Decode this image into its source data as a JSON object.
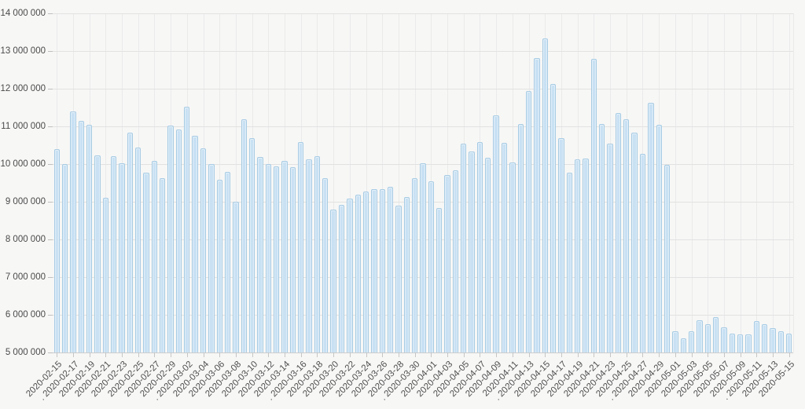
{
  "chart_data": {
    "type": "bar",
    "title": "",
    "xlabel": "",
    "ylabel": "",
    "legend": false,
    "grid": true,
    "y_axis": {
      "min": 5000000,
      "max": 14000000,
      "tick_step": 1000000,
      "tick_labels": [
        "14 000 000",
        "13 000 000",
        "12 000 000",
        "11 000 000",
        "10 000 000",
        "9 000 000",
        "8 000 000",
        "7 000 000",
        "6 000 000",
        "5 000 000"
      ]
    },
    "x_axis": {
      "labels_every_n_points": 2,
      "tick_labels": [
        "2020-02-15",
        ". 2020-02-17",
        "2020-02-19",
        "2020-02-21",
        "2020-02-23",
        "2020-02-25",
        "2020-02-27",
        "2020-02-29",
        ". 2020-03-02",
        "2020-03-04",
        "2020-03-06",
        "2020-03-08",
        "2020-03-10",
        "2020-03-12",
        "2020-03-14",
        ". 2020-03-16",
        "2020-03-18",
        "2020-03-20",
        "2020-03-22",
        "2020-03-24",
        "2020-03-26",
        "2020-03-28",
        ". 2020-03-30",
        "2020-04-01",
        "2020-04-03",
        "2020-04-05",
        "2020-04-07",
        "2020-04-09",
        "2020-04-11",
        ". 2020-04-13",
        "2020-04-15",
        "2020-04-17",
        "2020-04-19",
        "2020-04-21",
        "2020-04-23",
        "2020-04-25",
        ". 2020-04-27",
        "2020-04-29",
        "2020-05-01",
        "2020-05-03",
        "2020-05-05",
        "2020-05-07",
        "2020-05-09",
        ". 2020-05-11",
        "2020-05-13",
        "2020-05-15"
      ]
    },
    "dates": [
      "2020-02-15",
      "2020-02-16",
      "2020-02-17",
      "2020-02-18",
      "2020-02-19",
      "2020-02-20",
      "2020-02-21",
      "2020-02-22",
      "2020-02-23",
      "2020-02-24",
      "2020-02-25",
      "2020-02-26",
      "2020-02-27",
      "2020-02-28",
      "2020-02-29",
      "2020-03-01",
      "2020-03-02",
      "2020-03-03",
      "2020-03-04",
      "2020-03-05",
      "2020-03-06",
      "2020-03-07",
      "2020-03-08",
      "2020-03-09",
      "2020-03-10",
      "2020-03-11",
      "2020-03-12",
      "2020-03-13",
      "2020-03-14",
      "2020-03-15",
      "2020-03-16",
      "2020-03-17",
      "2020-03-18",
      "2020-03-19",
      "2020-03-20",
      "2020-03-21",
      "2020-03-22",
      "2020-03-23",
      "2020-03-24",
      "2020-03-25",
      "2020-03-26",
      "2020-03-27",
      "2020-03-28",
      "2020-03-29",
      "2020-03-30",
      "2020-03-31",
      "2020-04-01",
      "2020-04-02",
      "2020-04-03",
      "2020-04-04",
      "2020-04-05",
      "2020-04-06",
      "2020-04-07",
      "2020-04-08",
      "2020-04-09",
      "2020-04-10",
      "2020-04-11",
      "2020-04-12",
      "2020-04-13",
      "2020-04-14",
      "2020-04-15",
      "2020-04-16",
      "2020-04-17",
      "2020-04-18",
      "2020-04-19",
      "2020-04-20",
      "2020-04-21",
      "2020-04-22",
      "2020-04-23",
      "2020-04-24",
      "2020-04-25",
      "2020-04-26",
      "2020-04-27",
      "2020-04-28",
      "2020-04-29",
      "2020-04-30",
      "2020-05-01",
      "2020-05-02",
      "2020-05-03",
      "2020-05-04",
      "2020-05-05",
      "2020-05-06",
      "2020-05-07",
      "2020-05-08",
      "2020-05-09",
      "2020-05-10",
      "2020-05-11",
      "2020-05-12",
      "2020-05-13",
      "2020-05-14",
      "2020-05-15"
    ],
    "values": [
      10400000,
      10000000,
      11400000,
      11150000,
      11040000,
      10220000,
      9110000,
      10210000,
      10030000,
      10830000,
      10440000,
      9770000,
      10080000,
      9630000,
      11020000,
      10920000,
      11520000,
      10760000,
      10420000,
      10000000,
      9580000,
      9790000,
      9010000,
      11190000,
      10690000,
      10190000,
      10010000,
      9940000,
      10080000,
      9920000,
      10590000,
      10130000,
      10210000,
      9620000,
      8800000,
      8920000,
      9080000,
      9180000,
      9270000,
      9340000,
      9340000,
      9390000,
      8890000,
      9130000,
      9620000,
      10030000,
      9540000,
      8830000,
      9710000,
      9840000,
      10550000,
      10330000,
      10590000,
      10170000,
      11300000,
      10570000,
      10050000,
      11070000,
      11940000,
      12820000,
      13340000,
      12120000,
      10690000,
      9770000,
      10120000,
      10140000,
      12800000,
      11070000,
      10550000,
      11350000,
      11180000,
      10830000,
      10270000,
      11630000,
      11040000,
      9970000,
      5570000,
      5370000,
      5560000,
      5850000,
      5740000,
      5930000,
      5660000,
      5510000,
      5470000,
      5470000,
      5840000,
      5740000,
      5640000,
      5570000,
      5490000
    ],
    "colors": {
      "bar_fill": "#c9e1f3",
      "bar_border": "#a7cbe3",
      "bar_highlight": "#e2eff9",
      "background": "#f7f7f6",
      "gridline": "#e2e2e2",
      "axis_text": "#4a4a4a"
    }
  }
}
